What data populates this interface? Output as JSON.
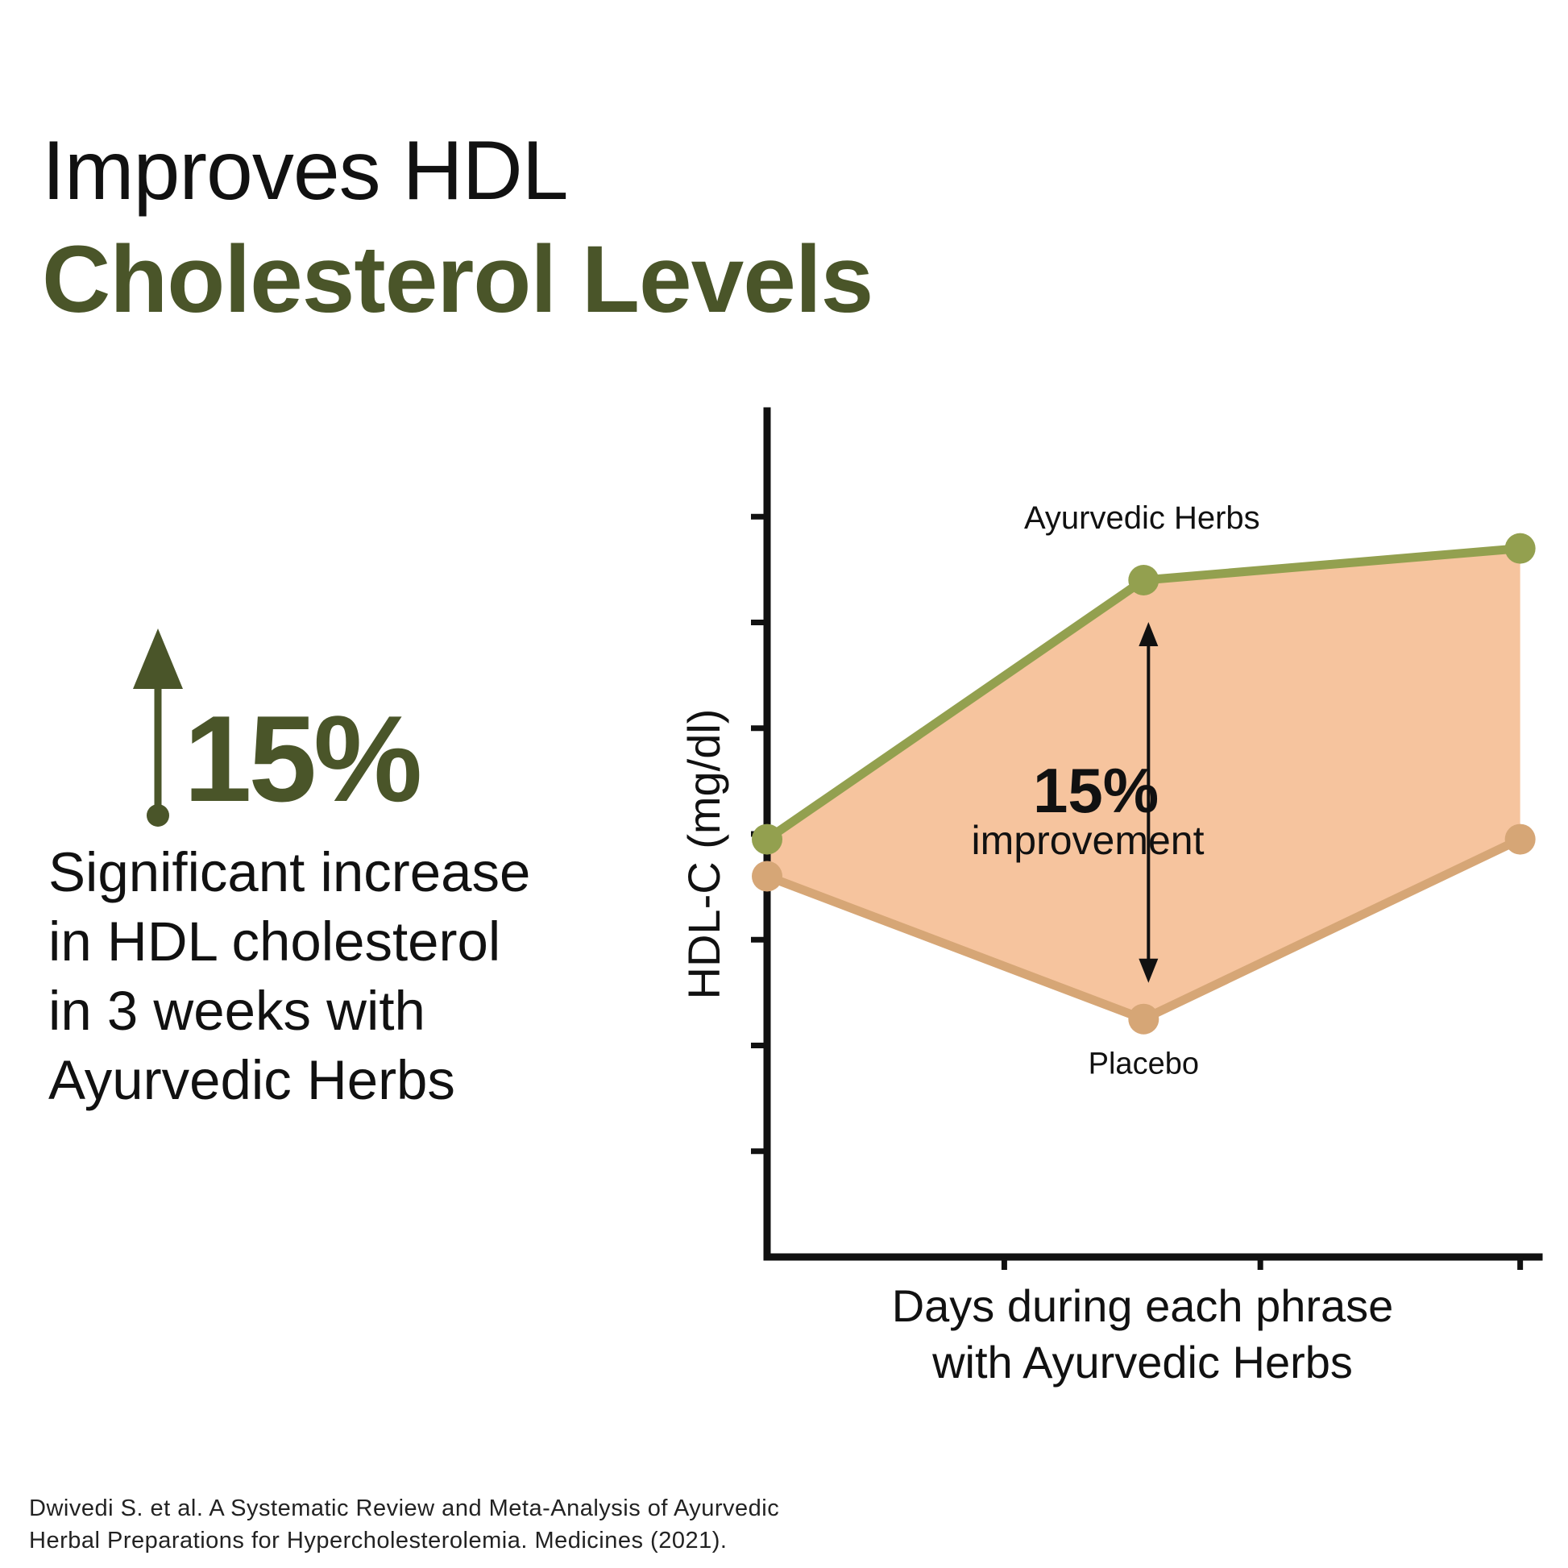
{
  "heading": {
    "line1": "Improves HDL",
    "line2": "Cholesterol Levels"
  },
  "stat": {
    "value": "15%",
    "icon": "arrow-up-icon",
    "description_lines": [
      "Significant increase",
      "in HDL cholesterol",
      "in 3 weeks with",
      "Ayurvedic Herbs"
    ]
  },
  "citation": {
    "lines": [
      "Dwivedi S. et al. A Systematic Review and Meta-Analysis of Ayurvedic",
      "Herbal Preparations for Hypercholesterolemia. Medicines (2021)."
    ]
  },
  "colors": {
    "brand_green": "#4a5529",
    "herbs_line": "#93a04f",
    "placebo_line": "#d6a676",
    "fill": "#f6c49e",
    "axis": "#111111"
  },
  "chart_data": {
    "type": "line",
    "xlabel_lines": [
      "Days during each phrase",
      "with Ayurvedic Herbs"
    ],
    "ylabel": "HDL-C (mg/dl)",
    "x": [
      0,
      1,
      2
    ],
    "xlim": [
      0,
      2.05
    ],
    "ylim": [
      0,
      8
    ],
    "y_ticks": 7,
    "x_ticks": 3,
    "series": [
      {
        "name": "Ayurvedic Herbs",
        "values": [
          3.95,
          6.4,
          6.7
        ],
        "color": "#93a04f",
        "label_anchor": "top"
      },
      {
        "name": "Placebo",
        "values": [
          3.6,
          2.25,
          3.95
        ],
        "color": "#d6a676",
        "label_anchor": "bottom"
      }
    ],
    "annotation": {
      "value": "15%",
      "text": "improvement"
    },
    "fill_between": true,
    "grid": false
  }
}
